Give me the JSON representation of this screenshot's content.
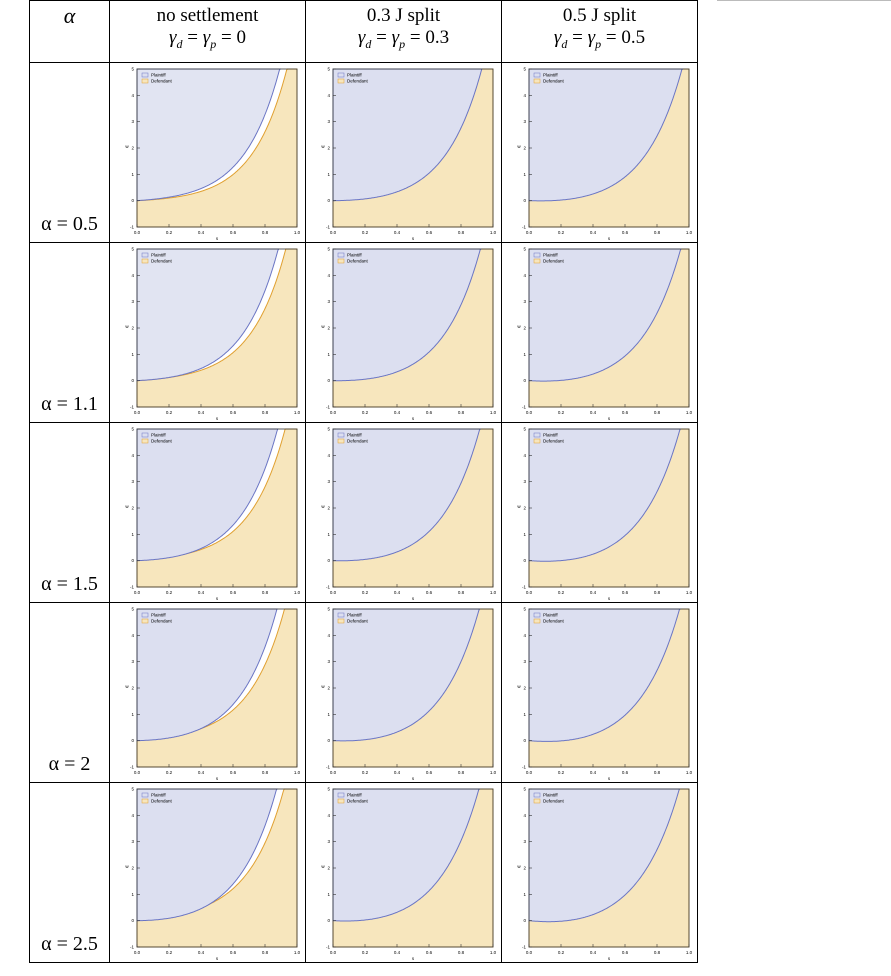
{
  "header": {
    "alpha_symbol": "α",
    "col1_title": "no settlement",
    "col1_gamma": "γ",
    "col1_gamma_sub_d": "d",
    "col1_gamma_sub_p": "p",
    "col1_value": "0",
    "col2_title": "0.3 J split",
    "col2_value": "0.3",
    "col3_title": "0.5 J split",
    "col3_value": "0.5"
  },
  "rows": [
    {
      "label": "α = 0.5",
      "alpha": 0.5
    },
    {
      "label": "α = 1.1",
      "alpha": 1.1
    },
    {
      "label": "α = 1.5",
      "alpha": 1.5
    },
    {
      "label": "α = 2",
      "alpha": 2
    },
    {
      "label": "α = 2.5",
      "alpha": 2.5
    }
  ],
  "columns": [
    {
      "gamma": 0
    },
    {
      "gamma": 0.3
    },
    {
      "gamma": 0.5
    }
  ],
  "plot": {
    "legend": [
      "Plaintiff",
      "Defendant"
    ],
    "xlabel": "s",
    "ylabel": "w",
    "xticks": [
      "0.0",
      "0.2",
      "0.4",
      "0.6",
      "0.8",
      "1.0"
    ],
    "yticks": [
      "-1",
      "0",
      "1",
      "2",
      "3",
      "4",
      "5"
    ],
    "xlim": [
      0,
      1
    ],
    "ylim": [
      -1,
      5
    ],
    "colors": {
      "plaintiff_fill": "#dcdff0",
      "plaintiff_line": "#6a75c4",
      "defendant_fill": "#f7e6bd",
      "defendant_line": "#e0a030",
      "overlap_fill": "#d8ccb2"
    }
  }
}
